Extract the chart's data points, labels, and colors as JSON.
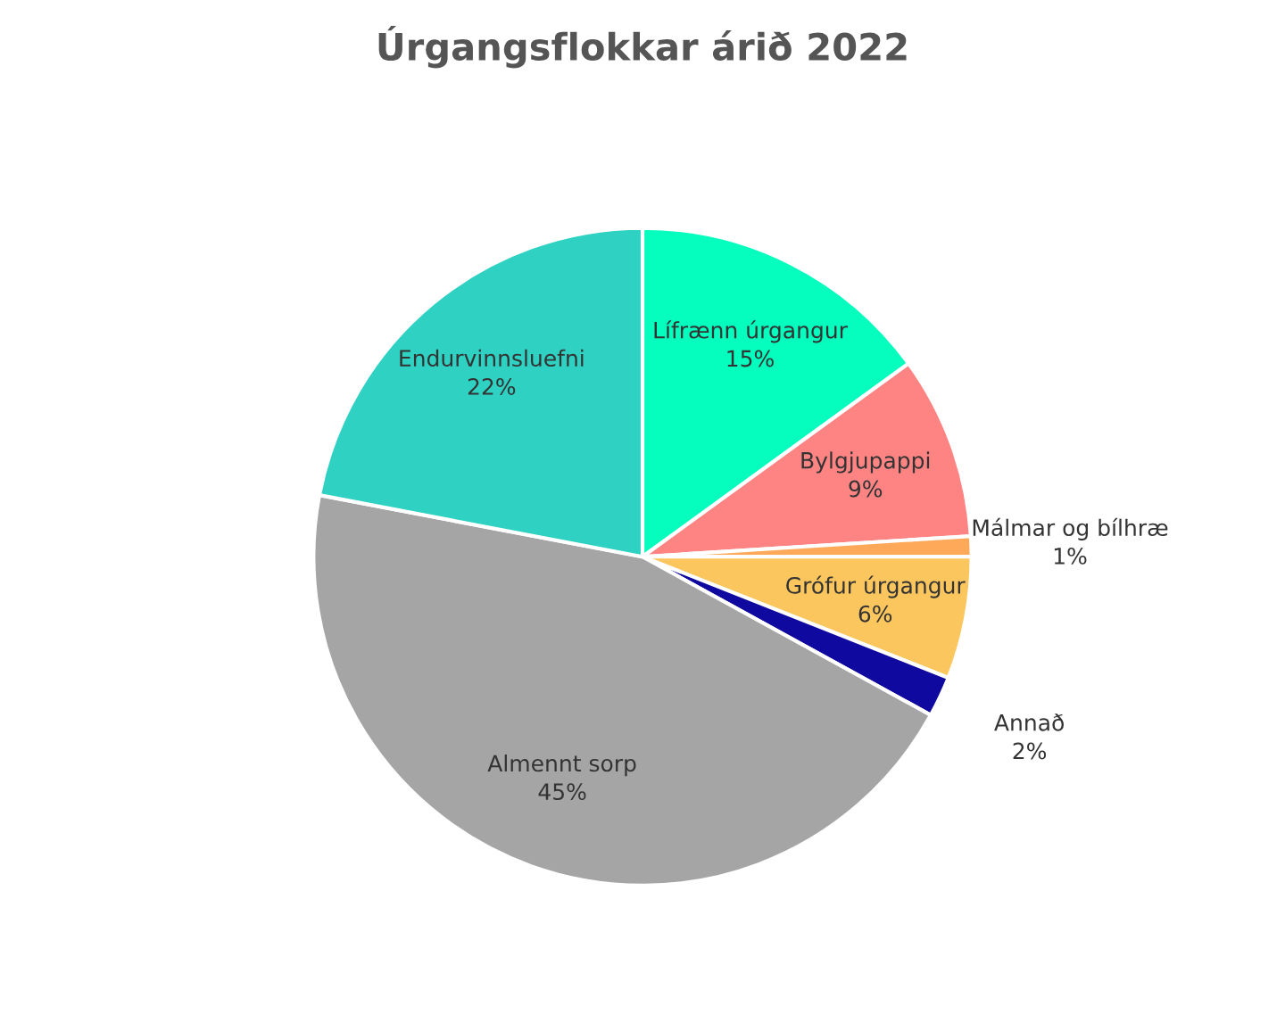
{
  "chart_data": {
    "type": "pie",
    "title": "Úrgangsflokkar árið 2022",
    "categories": [
      "Lífrænn úrgangur",
      "Bylgjupappi",
      "Málmar og bílhræ",
      "Grófur úrgangur",
      "Annað",
      "Almennt sorp",
      "Endurvinnsluefni"
    ],
    "values": [
      15,
      9,
      1,
      6,
      2,
      45,
      22
    ],
    "value_labels": [
      "15%",
      "9%",
      "1%",
      "6%",
      "2%",
      "45%",
      "22%"
    ],
    "colors": [
      "#05fdbd",
      "#fe8484",
      "#fea95a",
      "#fcc65e",
      "#1009a0",
      "#a5a5a5",
      "#2fd2c2"
    ]
  }
}
